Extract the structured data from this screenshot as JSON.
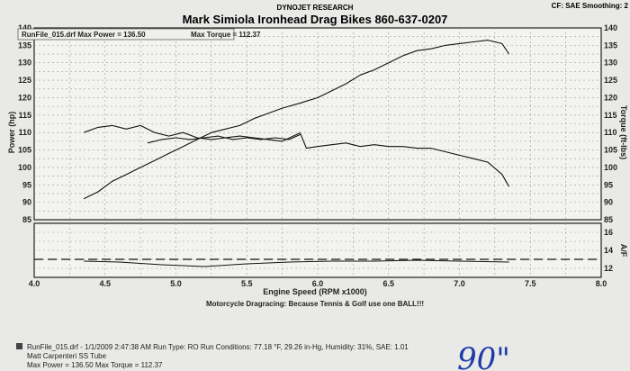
{
  "header": {
    "title": "Mark Simiola Ironhead Drag Bikes 860-637-0207",
    "company": "DYNOJET RESEARCH",
    "settings": "CF: SAE  Smoothing: 2"
  },
  "legend_box": {
    "run_label": "RunFile_015.drf Max Power = 136.50",
    "torque_label": "Max Torque = 112.37"
  },
  "caption": "Motorcycle Dragracing: Because Tennis & Golf use one BALL!!!",
  "footer": {
    "line1": "RunFile_015.drf - 1/1/2009 2:47:38 AM  Run Type: RO  Run Conditions: 77.18 °F, 29.26 in-Hg,  Humidity: 31%, SAE: 1.01",
    "line2": "Matt Carpenteri SS Tube",
    "line3": "Max Power = 136.50  Max Torque = 112.37",
    "handwritten": "90\""
  },
  "chart_data": [
    {
      "type": "line",
      "xlabel": "Engine Speed (RPM x1000)",
      "ylabel": "Power (hp)",
      "y2label": "Torque (ft-lbs)",
      "xlim": [
        4.0,
        8.0
      ],
      "ylim": [
        85,
        140
      ],
      "y2lim": [
        85,
        140
      ],
      "x_ticks": [
        "4.0",
        "4.5",
        "5.0",
        "5.5",
        "6.0",
        "6.5",
        "7.0",
        "7.5",
        "8.0"
      ],
      "y_ticks": [
        "85",
        "90",
        "95",
        "100",
        "105",
        "110",
        "115",
        "120",
        "125",
        "130",
        "135",
        "140"
      ],
      "y2_ticks": [
        "85",
        "90",
        "95",
        "100",
        "105",
        "110",
        "115",
        "120",
        "125",
        "130",
        "135",
        "140"
      ],
      "grid": true,
      "series": [
        {
          "axis": "left",
          "x": [
            4.35,
            4.45,
            4.55,
            4.65,
            4.75,
            4.85,
            4.95,
            5.05,
            5.15,
            5.25,
            5.35,
            5.45,
            5.55,
            5.65,
            5.75,
            5.88,
            5.92,
            6.0,
            6.1,
            6.2,
            6.3,
            6.4,
            6.5,
            6.6,
            6.7,
            6.8,
            6.9,
            7.0,
            7.1,
            7.2,
            7.3,
            7.35
          ],
          "y": [
            91,
            93,
            96,
            98,
            100,
            102,
            104,
            106,
            108,
            110,
            111,
            112,
            114,
            115.5,
            117,
            118.5,
            119,
            120,
            122,
            124,
            126.5,
            128,
            130,
            132,
            133.5,
            134,
            135,
            135.5,
            136,
            136.5,
            135.5,
            132.5
          ]
        },
        {
          "axis": "left",
          "x": [
            4.35,
            4.45,
            4.55,
            4.65,
            4.75,
            4.85,
            4.95,
            5.05,
            5.15,
            5.25,
            5.35,
            5.45,
            5.55,
            5.65,
            5.75,
            5.88
          ],
          "y": [
            110,
            111.5,
            112,
            111,
            112,
            110,
            109,
            110,
            108.5,
            108,
            108.5,
            109,
            108.5,
            108,
            107.5,
            110
          ]
        },
        {
          "axis": "right",
          "x": [
            4.8,
            4.9,
            5.0,
            5.1,
            5.2,
            5.3,
            5.4,
            5.5,
            5.6,
            5.7,
            5.8,
            5.88,
            5.92,
            6.0,
            6.1,
            6.2,
            6.3,
            6.4,
            6.5,
            6.6,
            6.7,
            6.8,
            6.9,
            7.0,
            7.1,
            7.2,
            7.3,
            7.35
          ],
          "y": [
            107,
            108,
            108.5,
            108,
            108.5,
            109,
            108,
            108.5,
            108,
            108.5,
            108,
            109.5,
            105.5,
            106,
            106.5,
            107,
            106,
            106.5,
            106,
            106,
            105.5,
            105.5,
            104.5,
            103.5,
            102.5,
            101.5,
            98,
            94.5
          ]
        }
      ]
    },
    {
      "type": "line",
      "xlabel": "",
      "ylabel": "A/F",
      "xlim": [
        4.0,
        8.0
      ],
      "ylim": [
        11,
        17
      ],
      "y_ticks": [
        "12",
        "14",
        "16"
      ],
      "grid": true,
      "series": [
        {
          "x": [
            4.0,
            8.0
          ],
          "y": [
            13,
            13
          ]
        },
        {
          "x": [
            4.35,
            4.6,
            4.9,
            5.2,
            5.5,
            5.8,
            6.1,
            6.4,
            6.7,
            7.0,
            7.35
          ],
          "y": [
            12.8,
            12.7,
            12.4,
            12.2,
            12.5,
            12.7,
            12.8,
            12.8,
            12.9,
            12.8,
            12.7
          ]
        }
      ]
    }
  ]
}
